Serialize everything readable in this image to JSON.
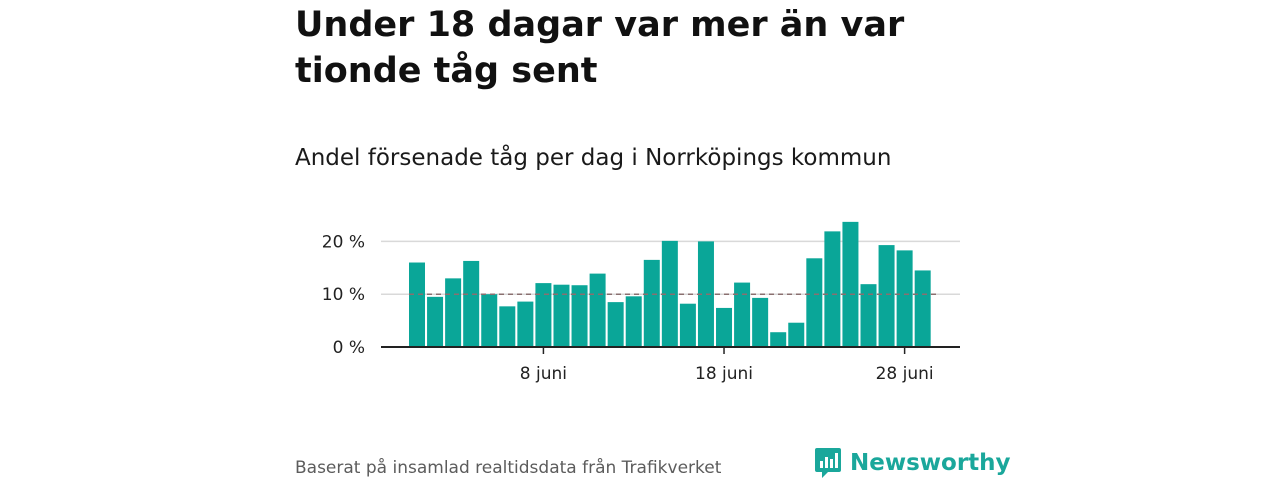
{
  "headline": "Under 18 dagar var mer än var tionde tåg sent",
  "subtitle": "Andel försenade tåg per dag i Norrköpings kommun",
  "source": "Baserat på insamlad realtidsdata från Trafikverket",
  "brand": "Newsworthy",
  "colors": {
    "bar": "#0aa698",
    "reference_line": "#8a6f6f",
    "brand": "#1aa79b",
    "grid": "#d9d9d9",
    "axis": "#222222"
  },
  "chart_data": {
    "type": "bar",
    "x": [
      "1 juni",
      "2 juni",
      "3 juni",
      "4 juni",
      "5 juni",
      "6 juni",
      "7 juni",
      "8 juni",
      "9 juni",
      "10 juni",
      "11 juni",
      "12 juni",
      "13 juni",
      "14 juni",
      "15 juni",
      "16 juni",
      "17 juni",
      "18 juni",
      "19 juni",
      "20 juni",
      "21 juni",
      "22 juni",
      "23 juni",
      "24 juni",
      "25 juni",
      "26 juni",
      "27 juni",
      "28 juni",
      "29 juni",
      "30 juni"
    ],
    "values": [
      16.0,
      9.5,
      13.0,
      16.3,
      10.0,
      7.7,
      8.6,
      12.1,
      11.8,
      11.7,
      13.9,
      8.5,
      9.6,
      16.5,
      20.1,
      8.2,
      20.0,
      7.4,
      12.2,
      9.3,
      2.8,
      4.6,
      16.8,
      21.9,
      23.7,
      11.9,
      19.3,
      18.3,
      14.5,
      null
    ],
    "reference_value": 10,
    "ylim": [
      0,
      25
    ],
    "yticks": [
      0,
      10,
      20
    ],
    "ytick_labels": [
      "0 %",
      "10 %",
      "20 %"
    ],
    "xtick_labels": [
      {
        "index": 7,
        "label": "8 juni"
      },
      {
        "index": 17,
        "label": "18 juni"
      },
      {
        "index": 27,
        "label": "28 juni"
      }
    ],
    "grid": true
  }
}
